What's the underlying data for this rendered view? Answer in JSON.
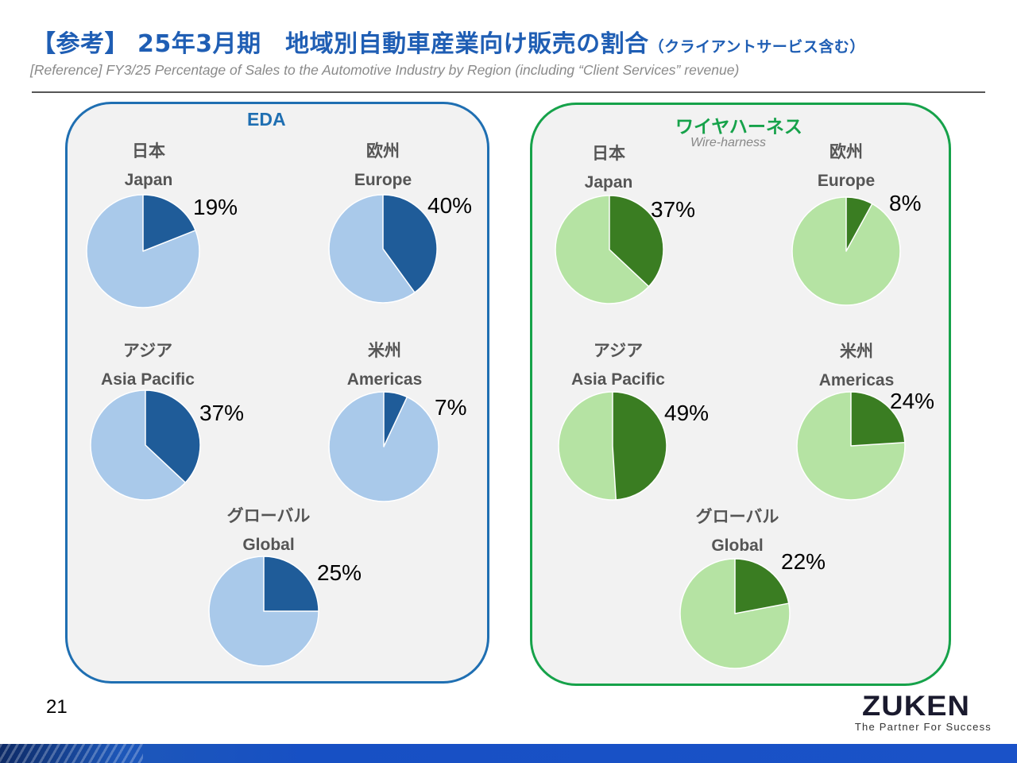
{
  "header": {
    "title_main": "【参考】 25年3月期　地域別自動車産業向け販売の割合",
    "title_small": "（クライアントサービス含む）",
    "subtitle": "[Reference] FY3/25 Percentage of Sales to the Automotive Industry by Region (including “Client Services” revenue)"
  },
  "colors": {
    "title": "#1f5eb4",
    "eda_border": "#1f6fb2",
    "eda_dark": "#1f5c99",
    "eda_light": "#a9c9ea",
    "wh_border": "#16a24a",
    "wh_dark": "#3a7d22",
    "wh_light": "#b5e3a3"
  },
  "panels": {
    "eda": {
      "title": "EDA",
      "title_color": "#1f6fb2"
    },
    "wh": {
      "title": "ワイヤハーネス",
      "subtitle": "Wire-harness",
      "title_color": "#16a24a"
    }
  },
  "chart_data": [
    {
      "type": "pie",
      "panel": "EDA",
      "charts": [
        {
          "region_jp": "日本",
          "region_en": "Japan",
          "value": 19,
          "label": "19%"
        },
        {
          "region_jp": "欧州",
          "region_en": "Europe",
          "value": 40,
          "label": "40%"
        },
        {
          "region_jp": "アジア",
          "region_en": "Asia Pacific",
          "value": 37,
          "label": "37%"
        },
        {
          "region_jp": "米州",
          "region_en": "Americas",
          "value": 7,
          "label": "7%"
        },
        {
          "region_jp": "グローバル",
          "region_en": "Global",
          "value": 25,
          "label": "25%"
        }
      ]
    },
    {
      "type": "pie",
      "panel": "ワイヤハーネス",
      "charts": [
        {
          "region_jp": "日本",
          "region_en": "Japan",
          "value": 37,
          "label": "37%"
        },
        {
          "region_jp": "欧州",
          "region_en": "Europe",
          "value": 8,
          "label": "8%"
        },
        {
          "region_jp": "アジア",
          "region_en": "Asia Pacific",
          "value": 49,
          "label": "49%"
        },
        {
          "region_jp": "米州",
          "region_en": "Americas",
          "value": 24,
          "label": "24%"
        },
        {
          "region_jp": "グローバル",
          "region_en": "Global",
          "value": 22,
          "label": "22%"
        }
      ]
    }
  ],
  "footer": {
    "page_number": "21",
    "logo": "ZUKEN",
    "tagline": "The Partner For Success"
  }
}
